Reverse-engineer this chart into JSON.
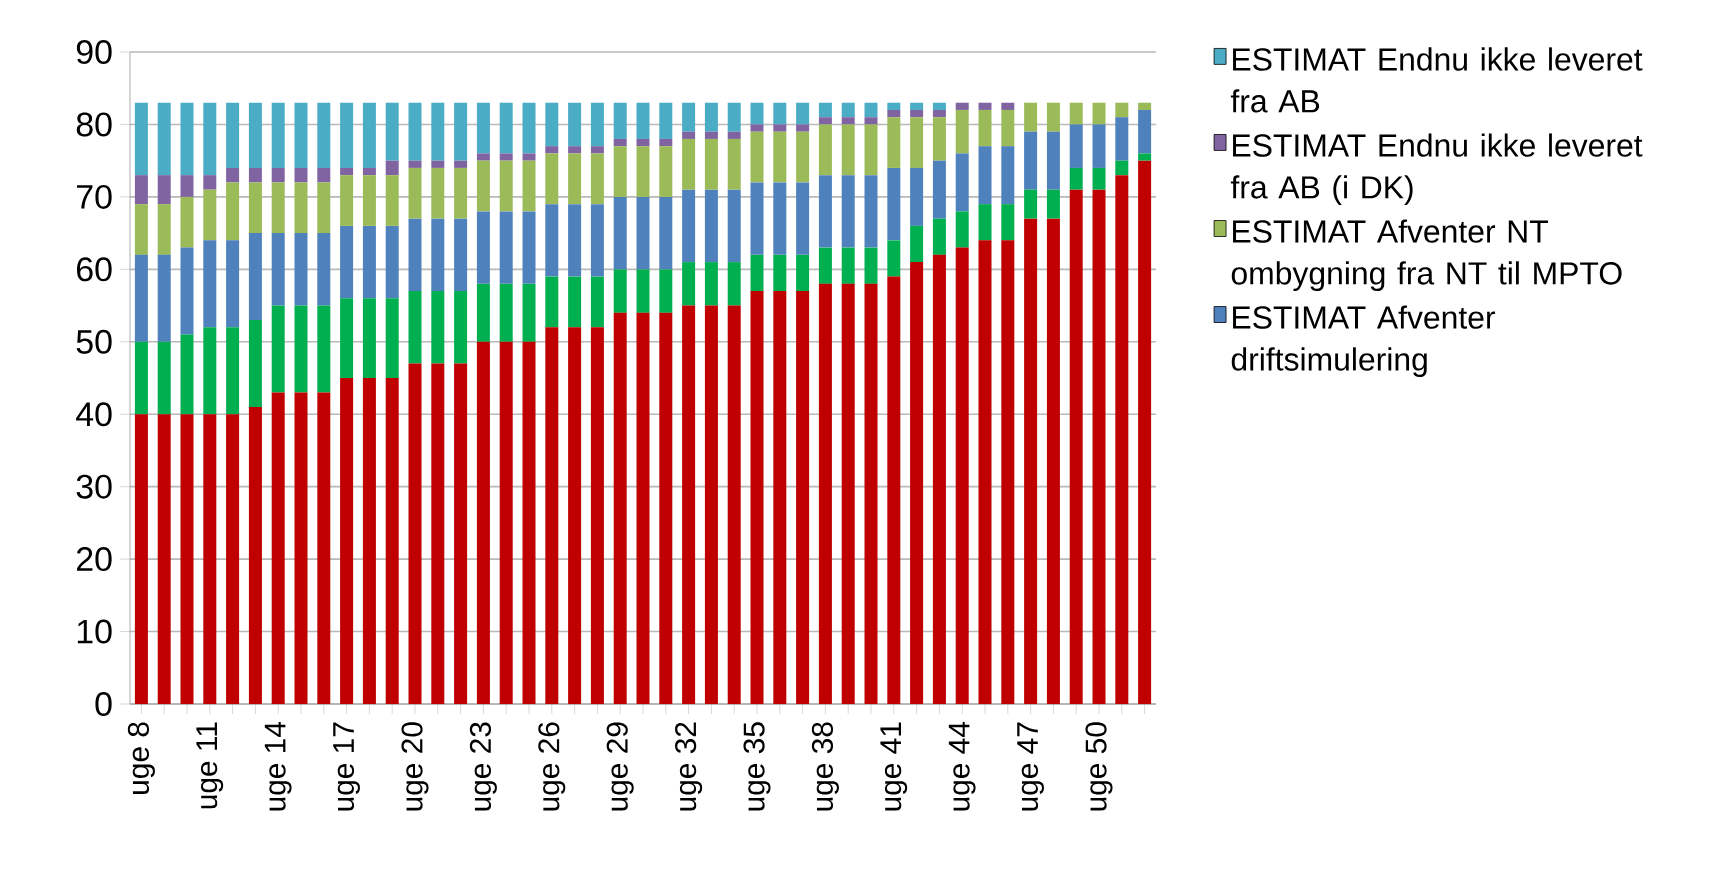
{
  "chart_data": {
    "type": "bar",
    "stacked": true,
    "grid": "y",
    "legend": "right",
    "categories": [
      "uge 8",
      null,
      null,
      "uge 11",
      null,
      null,
      "uge 14",
      null,
      null,
      "uge 17",
      null,
      null,
      "uge 20",
      null,
      null,
      "uge 23",
      null,
      null,
      "uge 26",
      null,
      null,
      "uge 29",
      null,
      null,
      "uge 32",
      null,
      null,
      "uge 35",
      null,
      null,
      "uge 38",
      null,
      null,
      "uge 41",
      null,
      null,
      "uge 44",
      null,
      null,
      "uge 47",
      null,
      null,
      "uge 50",
      null,
      null
    ],
    "ylim": [
      0,
      90
    ],
    "yticks": [
      0,
      10,
      20,
      30,
      40,
      50,
      60,
      70,
      80,
      90
    ],
    "series": [
      {
        "color": "#c00000",
        "values": [
          40,
          40,
          40,
          40,
          40,
          41,
          43,
          43,
          43,
          45,
          45,
          45,
          47,
          47,
          47,
          50,
          50,
          50,
          52,
          52,
          52,
          54,
          54,
          54,
          55,
          55,
          55,
          57,
          57,
          57,
          58,
          58,
          58,
          59,
          61,
          62,
          63,
          64,
          64,
          67,
          67,
          71,
          71,
          73,
          75
        ]
      },
      {
        "color": "#00b050",
        "values": [
          10,
          10,
          11,
          12,
          12,
          12,
          12,
          12,
          12,
          11,
          11,
          11,
          10,
          10,
          10,
          8,
          8,
          8,
          7,
          7,
          7,
          6,
          6,
          6,
          6,
          6,
          6,
          5,
          5,
          5,
          5,
          5,
          5,
          5,
          5,
          5,
          5,
          5,
          5,
          4,
          4,
          3,
          3,
          2,
          1
        ]
      },
      {
        "name": "ESTIMAT Afventer driftsimulering",
        "color": "#4f81bd",
        "values": [
          12,
          12,
          12,
          12,
          12,
          12,
          10,
          10,
          10,
          10,
          10,
          10,
          10,
          10,
          10,
          10,
          10,
          10,
          10,
          10,
          10,
          10,
          10,
          10,
          10,
          10,
          10,
          10,
          10,
          10,
          10,
          10,
          10,
          10,
          8,
          8,
          8,
          8,
          8,
          8,
          8,
          6,
          6,
          6,
          6
        ]
      },
      {
        "name": "ESTIMAT Afventer NT ombygning fra NT til MPTO",
        "color": "#9bbb59",
        "values": [
          7,
          7,
          7,
          7,
          8,
          7,
          7,
          7,
          7,
          7,
          7,
          7,
          7,
          7,
          7,
          7,
          7,
          7,
          7,
          7,
          7,
          7,
          7,
          7,
          7,
          7,
          7,
          7,
          7,
          7,
          7,
          7,
          7,
          7,
          7,
          6,
          6,
          5,
          5,
          4,
          4,
          3,
          3,
          2,
          1
        ]
      },
      {
        "name": "ESTIMAT Endnu ikke leveret fra AB (i DK)",
        "color": "#8064a2",
        "values": [
          4,
          4,
          3,
          2,
          2,
          2,
          2,
          2,
          2,
          1,
          1,
          2,
          1,
          1,
          1,
          1,
          1,
          1,
          1,
          1,
          1,
          1,
          1,
          1,
          1,
          1,
          1,
          1,
          1,
          1,
          1,
          1,
          1,
          1,
          1,
          1,
          1,
          1,
          1,
          0,
          0,
          0,
          0,
          0,
          0
        ]
      },
      {
        "name": "ESTIMAT Endnu ikke leveret fra AB",
        "color": "#4bacc6",
        "values": [
          10,
          10,
          10,
          10,
          9,
          9,
          9,
          9,
          9,
          9,
          9,
          8,
          8,
          8,
          8,
          7,
          7,
          7,
          6,
          6,
          6,
          5,
          5,
          5,
          4,
          4,
          4,
          3,
          3,
          3,
          2,
          2,
          2,
          1,
          1,
          1,
          0,
          0,
          0,
          0,
          0,
          0,
          0,
          0,
          0
        ]
      }
    ]
  }
}
